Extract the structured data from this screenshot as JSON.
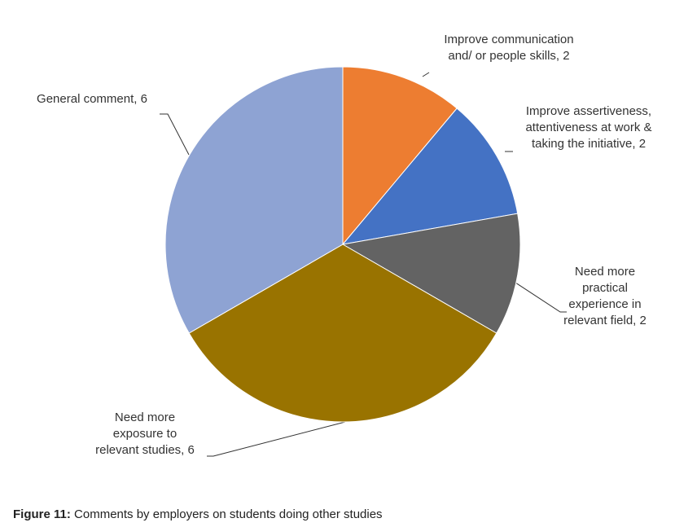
{
  "chart_data": {
    "type": "pie",
    "categories": [
      "Improve communication and/ or people skills, 2",
      "Improve assertiveness, attentiveness at work & taking the initiative, 2",
      "Need more practical experience in relevant field, 2",
      "Need more exposure to relevant studies, 6",
      "General comment, 6"
    ],
    "values": [
      2,
      2,
      2,
      6,
      6
    ],
    "colors": [
      "#ed7d31",
      "#4472c4",
      "#636363",
      "#997300",
      "#8ea3d3"
    ]
  },
  "caption": {
    "label": "Figure 11:",
    "text": "Comments by employers on students doing other studies"
  }
}
